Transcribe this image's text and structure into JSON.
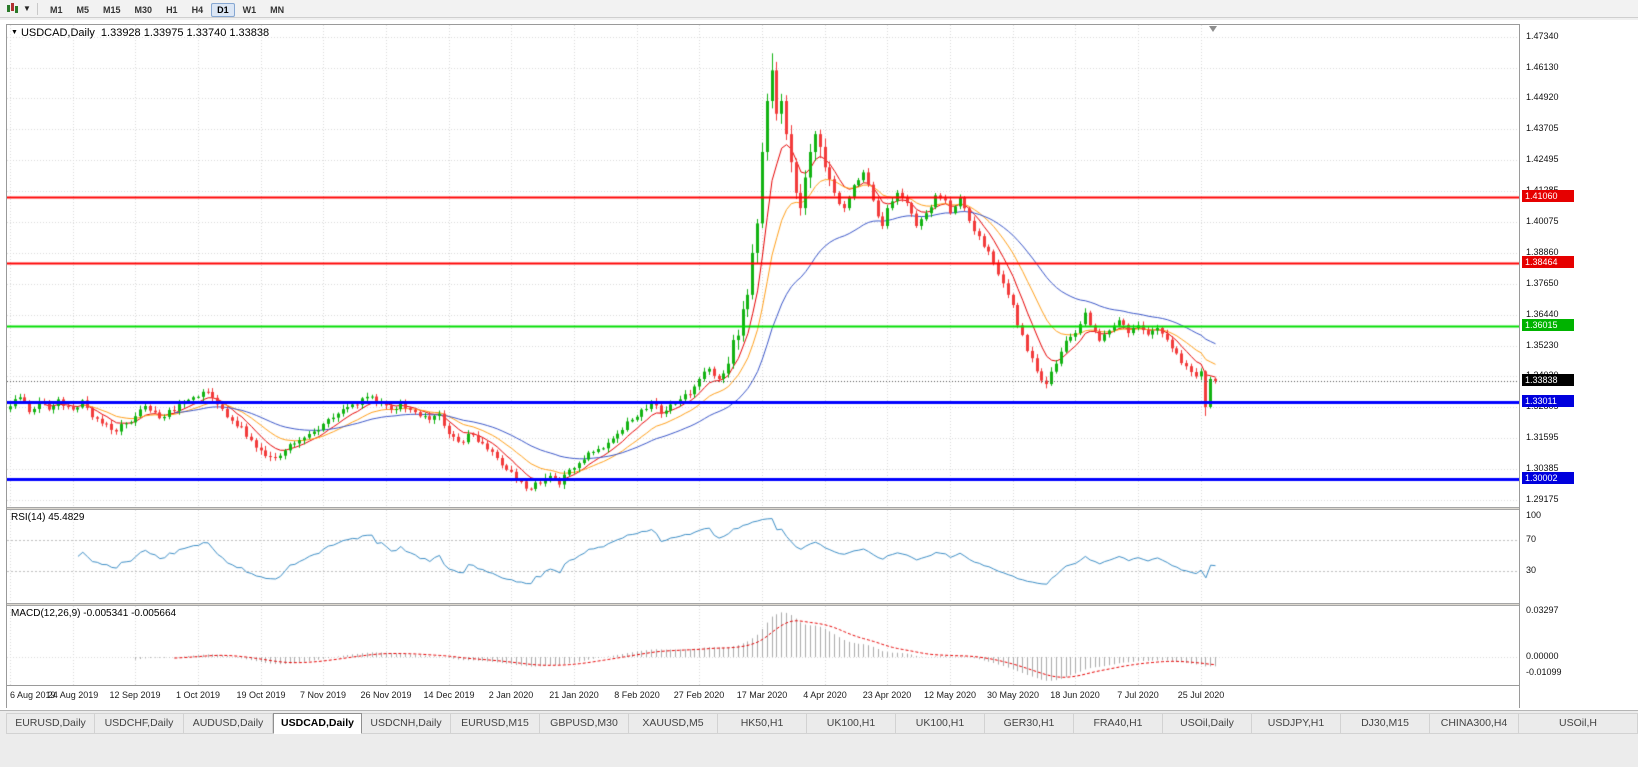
{
  "toolbar": {
    "chart_type_icon": "candlestick-chart",
    "dropdown_icon": "chevron-down",
    "timeframes": [
      {
        "label": "M1",
        "active": false
      },
      {
        "label": "M5",
        "active": false
      },
      {
        "label": "M15",
        "active": false
      },
      {
        "label": "M30",
        "active": false
      },
      {
        "label": "H1",
        "active": false
      },
      {
        "label": "H4",
        "active": false
      },
      {
        "label": "D1",
        "active": true
      },
      {
        "label": "W1",
        "active": false
      },
      {
        "label": "MN",
        "active": false
      }
    ]
  },
  "chart": {
    "symbol_period": "USDCAD,Daily",
    "ohlc_text": "1.33928 1.33975 1.33740 1.33838",
    "menu_arrow": "▼",
    "bid_price": 1.33838,
    "badges": [
      {
        "label": "1.41060",
        "price": 1.4106,
        "bg": "#e60000"
      },
      {
        "label": "1.38464",
        "price": 1.38464,
        "bg": "#e60000"
      },
      {
        "label": "1.36015",
        "price": 1.36015,
        "bg": "#00b300"
      },
      {
        "label": "1.33838",
        "price": 1.33838,
        "bg": "#000000"
      },
      {
        "label": "1.33011",
        "price": 1.33011,
        "bg": "#0000dd"
      },
      {
        "label": "1.30002",
        "price": 1.30002,
        "bg": "#0000dd"
      }
    ]
  },
  "indicators": {
    "rsi": {
      "label": "RSI(14) 45.4829",
      "period": 14,
      "current_value": 45.4829,
      "levels": [
        70,
        30
      ],
      "axis_labels": [
        "100",
        "70",
        "30"
      ],
      "color": "#3c8dc5",
      "levels_color": "#bdbdbd"
    },
    "macd": {
      "label": "MACD(12,26,9) -0.005341 -0.005664",
      "params": "12,26,9",
      "main_value": -0.005341,
      "signal_value": -0.005664,
      "axis_labels": [
        "0.03297",
        "0.00000",
        "-0.01099"
      ],
      "hist_color": "#ababab",
      "signal_color": "#e60000"
    }
  },
  "chart_data": {
    "type": "candlestick",
    "symbol": "USDCAD",
    "timeframe": "Daily",
    "title": "USDCAD,Daily",
    "bars_total": 251,
    "y_range": [
      1.289,
      1.478
    ],
    "y_ticks": [
      "1.47340",
      "1.46130",
      "1.44920",
      "1.43705",
      "1.42495",
      "1.41285",
      "1.40075",
      "1.38860",
      "1.37650",
      "1.36440",
      "1.35230",
      "1.34020",
      "1.32805",
      "1.31595",
      "1.30385",
      "1.29175"
    ],
    "x_labels": [
      "6 Aug 2019",
      "24 Aug 2019",
      "12 Sep 2019",
      "1 Oct 2019",
      "19 Oct 2019",
      "7 Nov 2019",
      "26 Nov 2019",
      "14 Dec 2019",
      "2 Jan 2020",
      "21 Jan 2020",
      "8 Feb 2020",
      "27 Feb 2020",
      "17 Mar 2020",
      "4 Apr 2020",
      "23 Apr 2020",
      "12 May 2020",
      "30 May 2020",
      "18 Jun 2020",
      "7 Jul 2020",
      "25 Jul 2020"
    ],
    "x_label_interval_bars": 13,
    "grid": true,
    "colors": {
      "up": "#12b312",
      "down": "#f23b3b",
      "grid": "#d8d8d8",
      "bid_line": "#555555"
    },
    "current_bar": {
      "open": 1.33928,
      "high": 1.33975,
      "low": 1.3374,
      "close": 1.33838
    },
    "extremes": {
      "spike_high": {
        "bar": 158,
        "price": 1.4669
      },
      "spike_low": {
        "bar": 107,
        "price": 1.2952
      },
      "recent_low": {
        "bar": 248,
        "price": 1.3247
      }
    },
    "horizontal_lines": [
      {
        "price": 1.4106,
        "color": "#ff0000",
        "width": 2
      },
      {
        "price": 1.38464,
        "color": "#ff0000",
        "width": 2
      },
      {
        "price": 1.36015,
        "color": "#00dd00",
        "width": 2
      },
      {
        "price": 1.33011,
        "color": "#0000ff",
        "width": 3
      },
      {
        "price": 1.30002,
        "color": "#0000ff",
        "width": 3
      }
    ],
    "moving_averages": [
      {
        "estimated_period": 7,
        "color": "#e60000"
      },
      {
        "estimated_period": 15,
        "color": "#ff9f1a"
      },
      {
        "estimated_period": 34,
        "color": "#3a56c8"
      }
    ],
    "close_anchors": [
      [
        0,
        1.3285
      ],
      [
        2,
        1.332
      ],
      [
        4,
        1.3262
      ],
      [
        6,
        1.3305
      ],
      [
        8,
        1.3272
      ],
      [
        10,
        1.3312
      ],
      [
        12,
        1.3285
      ],
      [
        13,
        1.3272
      ],
      [
        15,
        1.3308
      ],
      [
        17,
        1.3242
      ],
      [
        20,
        1.3216
      ],
      [
        22,
        1.3186
      ],
      [
        24,
        1.3218
      ],
      [
        26,
        1.3246
      ],
      [
        28,
        1.3286
      ],
      [
        31,
        1.3238
      ],
      [
        34,
        1.3266
      ],
      [
        36,
        1.33
      ],
      [
        39,
        1.3322
      ],
      [
        41,
        1.3341
      ],
      [
        43,
        1.3292
      ],
      [
        45,
        1.3242
      ],
      [
        48,
        1.3206
      ],
      [
        50,
        1.3152
      ],
      [
        52,
        1.3112
      ],
      [
        54,
        1.3086
      ],
      [
        57,
        1.3112
      ],
      [
        60,
        1.3152
      ],
      [
        63,
        1.3186
      ],
      [
        65,
        1.3216
      ],
      [
        68,
        1.3256
      ],
      [
        71,
        1.3292
      ],
      [
        74,
        1.3322
      ],
      [
        77,
        1.3302
      ],
      [
        79,
        1.3272
      ],
      [
        81,
        1.3296
      ],
      [
        84,
        1.3262
      ],
      [
        87,
        1.3232
      ],
      [
        89,
        1.3256
      ],
      [
        91,
        1.3176
      ],
      [
        93,
        1.3146
      ],
      [
        96,
        1.3172
      ],
      [
        99,
        1.3116
      ],
      [
        101,
        1.3082
      ],
      [
        103,
        1.3036
      ],
      [
        105,
        1.2992
      ],
      [
        107,
        1.2962
      ],
      [
        109,
        1.2986
      ],
      [
        112,
        1.3012
      ],
      [
        114,
        1.2978
      ],
      [
        116,
        1.3036
      ],
      [
        118,
        1.3062
      ],
      [
        121,
        1.3106
      ],
      [
        124,
        1.3142
      ],
      [
        127,
        1.3192
      ],
      [
        129,
        1.3232
      ],
      [
        131,
        1.3272
      ],
      [
        133,
        1.3302
      ],
      [
        135,
        1.3256
      ],
      [
        137,
        1.3292
      ],
      [
        139,
        1.3312
      ],
      [
        141,
        1.3332
      ],
      [
        143,
        1.3392
      ],
      [
        145,
        1.3432
      ],
      [
        147,
        1.3392
      ],
      [
        149,
        1.3452
      ],
      [
        151,
        1.3562
      ],
      [
        153,
        1.3722
      ],
      [
        155,
        1.4002
      ],
      [
        156,
        1.4282
      ],
      [
        157,
        1.4482
      ],
      [
        158,
        1.4602
      ],
      [
        159,
        1.4432
      ],
      [
        160,
        1.4482
      ],
      [
        161,
        1.4352
      ],
      [
        162,
        1.4242
      ],
      [
        163,
        1.4122
      ],
      [
        164,
        1.4062
      ],
      [
        165,
        1.4182
      ],
      [
        166,
        1.4282
      ],
      [
        167,
        1.4352
      ],
      [
        168,
        1.4302
      ],
      [
        169,
        1.4222
      ],
      [
        171,
        1.4122
      ],
      [
        173,
        1.4062
      ],
      [
        175,
        1.4152
      ],
      [
        177,
        1.4202
      ],
      [
        179,
        1.4092
      ],
      [
        181,
        1.3992
      ],
      [
        182,
        1.4062
      ],
      [
        184,
        1.4122
      ],
      [
        186,
        1.4082
      ],
      [
        188,
        1.3992
      ],
      [
        190,
        1.4042
      ],
      [
        192,
        1.4112
      ],
      [
        194,
        1.4092
      ],
      [
        195,
        1.4042
      ],
      [
        197,
        1.4102
      ],
      [
        199,
        1.4012
      ],
      [
        201,
        1.3952
      ],
      [
        203,
        1.3892
      ],
      [
        205,
        1.3802
      ],
      [
        207,
        1.3722
      ],
      [
        208,
        1.3682
      ],
      [
        209,
        1.3602
      ],
      [
        211,
        1.3502
      ],
      [
        213,
        1.3422
      ],
      [
        215,
        1.3372
      ],
      [
        217,
        1.3452
      ],
      [
        219,
        1.3542
      ],
      [
        221,
        1.3572
      ],
      [
        223,
        1.3652
      ],
      [
        224,
        1.3602
      ],
      [
        226,
        1.3542
      ],
      [
        228,
        1.3582
      ],
      [
        230,
        1.3622
      ],
      [
        232,
        1.3572
      ],
      [
        234,
        1.3602
      ],
      [
        236,
        1.3566
      ],
      [
        238,
        1.3592
      ],
      [
        240,
        1.3546
      ],
      [
        242,
        1.3492
      ],
      [
        244,
        1.3442
      ],
      [
        246,
        1.3402
      ],
      [
        247,
        1.3422
      ],
      [
        248,
        1.3282
      ],
      [
        249,
        1.3392
      ],
      [
        250,
        1.33838
      ]
    ]
  },
  "tabs": [
    {
      "label": "EURUSD,Daily",
      "active": false
    },
    {
      "label": "USDCHF,Daily",
      "active": false
    },
    {
      "label": "AUDUSD,Daily",
      "active": false
    },
    {
      "label": "USDCAD,Daily",
      "active": true
    },
    {
      "label": "USDCNH,Daily",
      "active": false
    },
    {
      "label": "EURUSD,M15",
      "active": false
    },
    {
      "label": "GBPUSD,M30",
      "active": false
    },
    {
      "label": "XAUUSD,M5",
      "active": false
    },
    {
      "label": "HK50,H1",
      "active": false
    },
    {
      "label": "UK100,H1",
      "active": false
    },
    {
      "label": "UK100,H1",
      "active": false
    },
    {
      "label": "GER30,H1",
      "active": false
    },
    {
      "label": "FRA40,H1",
      "active": false
    },
    {
      "label": "USOil,Daily",
      "active": false
    },
    {
      "label": "USDJPY,H1",
      "active": false
    },
    {
      "label": "DJ30,M15",
      "active": false
    },
    {
      "label": "CHINA300,H4",
      "active": false
    },
    {
      "label": "USOil,H",
      "active": false
    }
  ]
}
